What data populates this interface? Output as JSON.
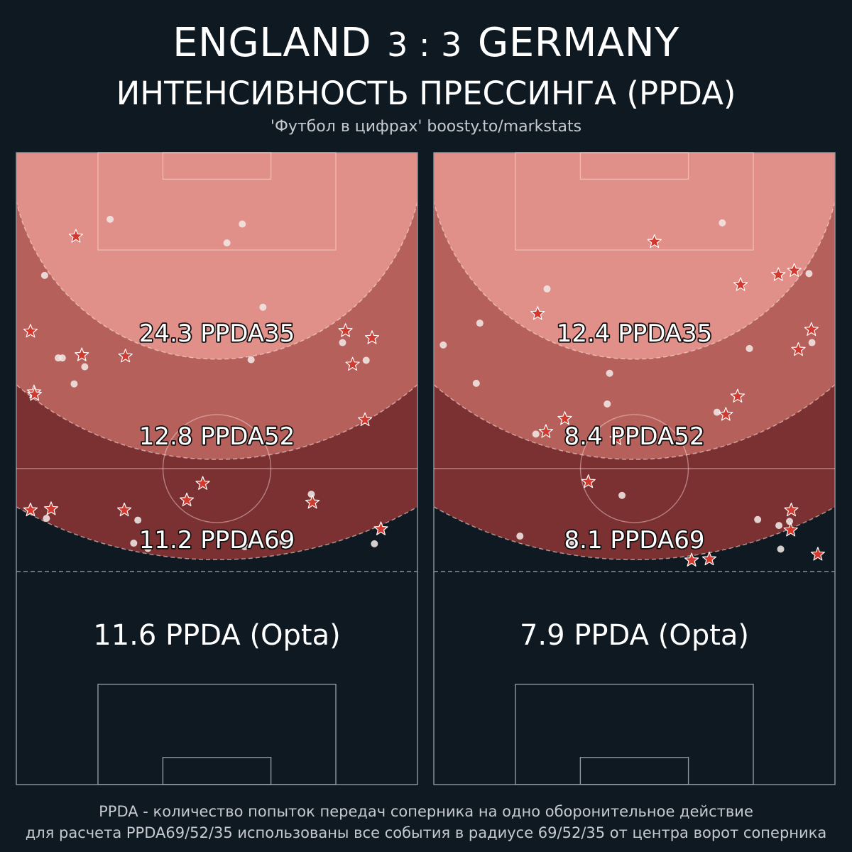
{
  "header": {
    "team_home": "ENGLAND",
    "score": "3 : 3",
    "team_away": "GERMANY",
    "subtitle": "ИНТЕНСИВНОСТЬ ПРЕССИНГА (PPDA)",
    "credit": "'Футбол в цифрах' boosty.to/markstats"
  },
  "footer": {
    "line1": "PPDA - количество попыток передач соперника на одно оборонительное действие",
    "line2": "для расчета PPDA69/52/35 использованы все события в радиусе 69/52/35 от центра ворот соперника"
  },
  "colors": {
    "background": "#0f1921",
    "zone69": "#7b3132",
    "zone52": "#b6605c",
    "zone35": "#e09089",
    "pitch_lines": "#8b9aa3",
    "star": "#d33a2f",
    "dot": "#f1e7e5"
  },
  "chart_data": [
    {
      "type": "scatter",
      "team": "ENGLAND",
      "units": "metres (pitch 68 wide, distance from opponent goal line)",
      "zones": [
        {
          "radius": 69,
          "value": 11.2,
          "label": "11.2 PPDA69"
        },
        {
          "radius": 52,
          "value": 12.8,
          "label": "12.8 PPDA52"
        },
        {
          "radius": 35,
          "value": 24.3,
          "label": "24.3 PPDA35"
        }
      ],
      "opta": {
        "value": 11.6,
        "label": "11.6 PPDA (Opta)"
      },
      "stars": [
        [
          10.1,
          14.2
        ],
        [
          2.4,
          30.3
        ],
        [
          11.1,
          34.3
        ],
        [
          18.5,
          34.5
        ],
        [
          3.0,
          40.6
        ],
        [
          3.1,
          41.0
        ],
        [
          55.8,
          30.2
        ],
        [
          60.3,
          31.4
        ],
        [
          57.0,
          35.9
        ],
        [
          59.1,
          45.3
        ],
        [
          31.6,
          56.1
        ],
        [
          28.9,
          58.9
        ],
        [
          2.4,
          60.6
        ],
        [
          5.9,
          60.4
        ],
        [
          18.3,
          60.6
        ],
        [
          50.2,
          59.3
        ],
        [
          61.8,
          63.8
        ]
      ],
      "dots": [
        [
          15.9,
          11.3
        ],
        [
          38.3,
          12.1
        ],
        [
          35.7,
          15.3
        ],
        [
          4.8,
          20.8
        ],
        [
          41.8,
          26.2
        ],
        [
          55.3,
          32.2
        ],
        [
          7.1,
          34.8
        ],
        [
          7.8,
          34.8
        ],
        [
          11.6,
          36.3
        ],
        [
          39.8,
          35.1
        ],
        [
          59.3,
          35.2
        ],
        [
          9.8,
          39.2
        ],
        [
          50.0,
          57.9
        ],
        [
          5.1,
          62.0
        ],
        [
          20.6,
          62.3
        ],
        [
          19.9,
          66.2
        ],
        [
          22.3,
          67.1
        ],
        [
          38.7,
          66.8
        ],
        [
          45.2,
          66.0
        ],
        [
          60.7,
          66.3
        ]
      ]
    },
    {
      "type": "scatter",
      "team": "GERMANY",
      "units": "metres (pitch 68 wide, distance from opponent goal line)",
      "zones": [
        {
          "radius": 69,
          "value": 8.1,
          "label": "8.1 PPDA69"
        },
        {
          "radius": 52,
          "value": 8.4,
          "label": "8.4 PPDA52"
        },
        {
          "radius": 35,
          "value": 12.4,
          "label": "12.4 PPDA35"
        }
      ],
      "opta": {
        "value": 7.9,
        "label": "7.9 PPDA (Opta)"
      },
      "stars": [
        [
          37.4,
          15.1
        ],
        [
          61.1,
          20.0
        ],
        [
          58.4,
          20.7
        ],
        [
          52.0,
          22.4
        ],
        [
          17.6,
          27.3
        ],
        [
          64.0,
          30.0
        ],
        [
          61.8,
          33.4
        ],
        [
          51.5,
          41.3
        ],
        [
          49.5,
          44.4
        ],
        [
          22.2,
          45.1
        ],
        [
          19.0,
          47.3
        ],
        [
          31.0,
          48.5
        ],
        [
          26.2,
          55.8
        ],
        [
          60.6,
          60.6
        ],
        [
          60.5,
          64.0
        ],
        [
          46.7,
          68.9
        ],
        [
          43.7,
          69.1
        ],
        [
          65.1,
          68.1
        ]
      ],
      "dots": [
        [
          48.9,
          11.9
        ],
        [
          19.2,
          23.1
        ],
        [
          7.8,
          28.9
        ],
        [
          63.6,
          20.5
        ],
        [
          1.6,
          32.6
        ],
        [
          53.5,
          33.2
        ],
        [
          64.1,
          32.2
        ],
        [
          29.8,
          37.4
        ],
        [
          7.2,
          39.1
        ],
        [
          29.4,
          42.6
        ],
        [
          48.0,
          44.0
        ],
        [
          17.3,
          47.7
        ],
        [
          31.9,
          58.1
        ],
        [
          54.9,
          62.2
        ],
        [
          58.5,
          63.2
        ],
        [
          60.3,
          62.5
        ],
        [
          14.6,
          65.0
        ],
        [
          23.3,
          66.4
        ],
        [
          58.8,
          67.2
        ]
      ]
    }
  ]
}
